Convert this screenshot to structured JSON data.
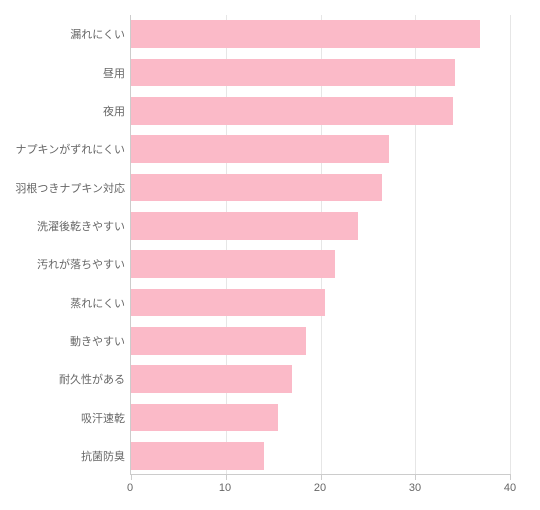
{
  "chart": {
    "type": "bar-horizontal",
    "background_color": "#ffffff",
    "bar_color": "#fbbac8",
    "grid_color": "#e6e6e6",
    "axis_color": "#cccccc",
    "label_color": "#666666",
    "label_fontsize": 11,
    "xlim": [
      0,
      40
    ],
    "xtick_step": 10,
    "xticks": [
      0,
      10,
      20,
      30,
      40
    ],
    "bar_height_ratio": 0.72,
    "categories": [
      "漏れにくい",
      "昼用",
      "夜用",
      "ナプキンがずれにくい",
      "羽根つきナプキン対応",
      "洗濯後乾きやすい",
      "汚れが落ちやすい",
      "蒸れにくい",
      "動きやすい",
      "耐久性がある",
      "吸汗速乾",
      "抗菌防臭"
    ],
    "values": [
      36.8,
      34.2,
      34.0,
      27.2,
      26.5,
      24.0,
      21.5,
      20.5,
      18.5,
      17.0,
      15.5,
      14.0
    ]
  }
}
